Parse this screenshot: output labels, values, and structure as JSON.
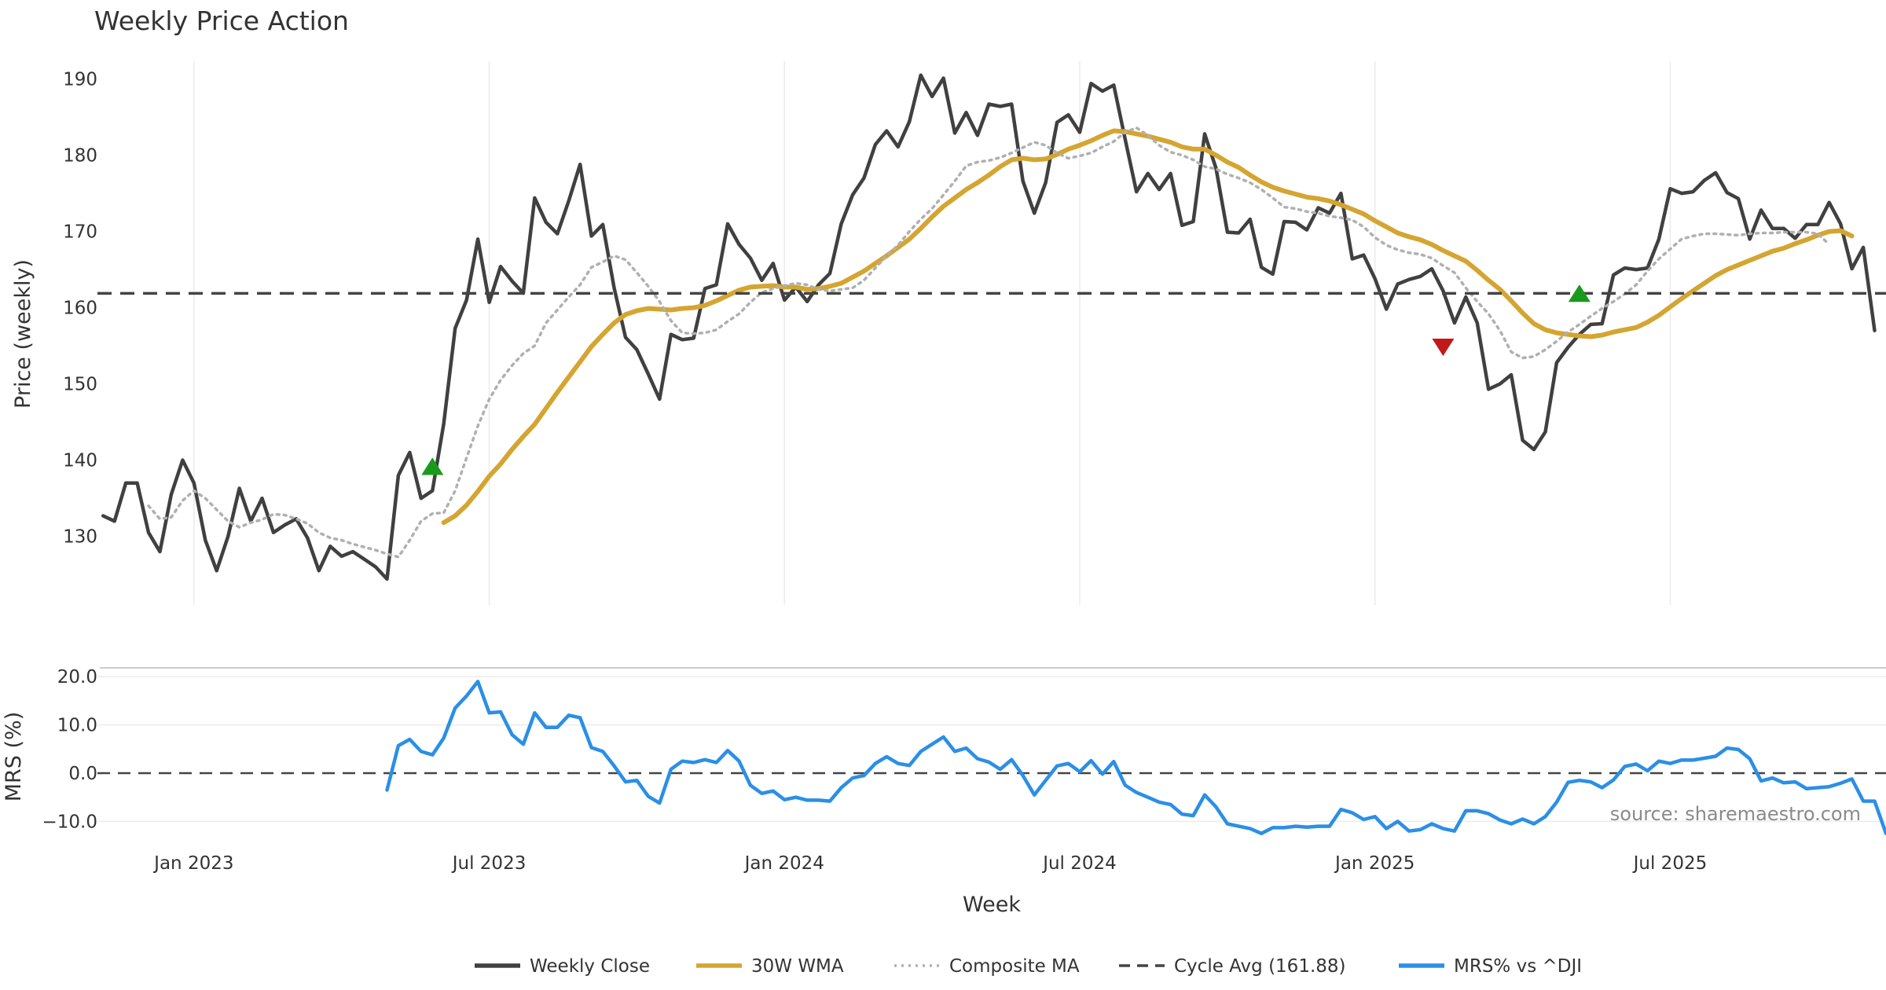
{
  "chart_data": {
    "type": "line",
    "title": "Weekly Price Action",
    "xlabel": "Week",
    "x_ticks": [
      {
        "label": "Jan 2023",
        "week": 0
      },
      {
        "label": "Jul 2023",
        "week": 26
      },
      {
        "label": "Jan 2024",
        "week": 52
      },
      {
        "label": "Jul 2024",
        "week": 78
      },
      {
        "label": "Jan 2025",
        "week": 104
      },
      {
        "label": "Jul 2025",
        "week": 130
      }
    ],
    "x_range": [
      -8.5,
      149
    ],
    "price_panel": {
      "ylabel": "Price (weekly)",
      "ylim": [
        121,
        195
      ],
      "yticks": [
        130,
        140,
        150,
        160,
        170,
        180,
        190
      ],
      "grid": "vertical",
      "start_week": -8,
      "series": [
        {
          "name": "Weekly Close",
          "color": "#404040",
          "values": [
            132.7,
            132,
            137,
            137,
            130.5,
            128,
            135.5,
            140,
            137,
            129.5,
            125.5,
            130,
            136.3,
            132,
            135,
            130.5,
            131.5,
            132.3,
            129.8,
            125.5,
            128.7,
            127.4,
            128,
            127,
            126,
            124.4,
            138,
            141,
            135,
            136,
            144.8,
            157.3,
            161,
            169,
            160.7,
            165.4,
            163.5,
            161.9,
            174.4,
            171.2,
            169.7,
            174,
            178.8,
            169.4,
            170.9,
            162.6,
            156.1,
            154.5,
            151.3,
            148,
            156.5,
            155.8,
            156,
            162.5,
            163,
            171,
            168.3,
            166.5,
            163.6,
            165.8,
            161,
            162.7,
            160.8,
            163,
            164.5,
            171,
            174.8,
            177,
            181.4,
            183.2,
            181.1,
            184.4,
            190.5,
            187.7,
            190.1,
            182.9,
            185.6,
            182.6,
            186.7,
            186.4,
            186.7,
            176.6,
            172.4,
            176.4,
            184.3,
            185.3,
            183,
            189.4,
            188.4,
            189.2,
            182.1,
            175.2,
            177.6,
            175.5,
            177.6,
            170.8,
            171.3,
            182.8,
            178.3,
            169.9,
            169.8,
            171.6,
            165.3,
            164.4,
            171.3,
            171.2,
            170.2,
            173.1,
            172.4,
            175,
            166.4,
            166.9,
            163.8,
            159.8,
            163.1,
            163.7,
            164.1,
            165.1,
            162.2,
            158,
            161.4,
            158,
            149.3,
            150,
            151.2,
            142.6,
            141.4,
            143.7,
            152.8,
            154.8,
            156.5,
            157.8,
            157.9,
            164.3,
            165.2,
            165,
            165.2,
            169,
            175.6,
            175,
            175.2,
            176.7,
            177.7,
            175.1,
            174.3,
            169,
            172.8,
            170.4,
            170.4,
            169.1,
            170.9,
            170.9,
            173.8,
            171,
            165.1,
            167.9,
            157
          ]
        },
        {
          "name": "30W WMA",
          "color": "#d4a531",
          "start_week": 22,
          "values": [
            131.8,
            132.7,
            134.1,
            135.9,
            137.9,
            139.5,
            141.4,
            143.1,
            144.7,
            146.8,
            148.9,
            150.9,
            152.9,
            154.9,
            156.5,
            158,
            159.1,
            159.6,
            159.9,
            159.8,
            159.7,
            159.9,
            160,
            160.3,
            160.9,
            161.6,
            162.3,
            162.7,
            162.8,
            162.9,
            162.7,
            162.7,
            162.4,
            162.5,
            162.8,
            163.2,
            164,
            164.8,
            165.8,
            166.8,
            167.9,
            169,
            170.4,
            171.9,
            173.3,
            174.4,
            175.5,
            176.4,
            177.4,
            178.5,
            179.4,
            179.6,
            179.4,
            179.5,
            180.1,
            180.8,
            181.3,
            181.9,
            182.6,
            183.2,
            183.1,
            182.8,
            182.5,
            182.1,
            181.7,
            181.1,
            180.8,
            180.8,
            180,
            179.1,
            178.4,
            177.4,
            176.5,
            175.8,
            175.3,
            174.9,
            174.5,
            174.3,
            174,
            173.5,
            172.9,
            172.3,
            171.4,
            170.6,
            169.8,
            169.3,
            168.9,
            168.3,
            167.5,
            166.8,
            166.1,
            164.9,
            163.6,
            162.4,
            160.9,
            159.3,
            157.9,
            157.1,
            156.7,
            156.5,
            156.3,
            156.2,
            156.4,
            156.8,
            157.1,
            157.4,
            158.1,
            159,
            160.1,
            161.2,
            162.2,
            163.2,
            164.2,
            165,
            165.6,
            166.2,
            166.8,
            167.4,
            167.8,
            168.4,
            168.9,
            169.5,
            170,
            170.1,
            169.4
          ]
        },
        {
          "name": "Composite MA",
          "color": "#b0b0b0",
          "start_week": -4,
          "values": [
            134,
            132.3,
            132.5,
            134.7,
            136,
            135,
            133.5,
            132,
            131.2,
            131.8,
            132.2,
            132.9,
            132.8,
            132.3,
            131.7,
            130.5,
            129.8,
            129.5,
            129,
            128.6,
            128.2,
            127.7,
            127.3,
            129.5,
            132,
            133,
            133.1,
            136,
            140.3,
            144.5,
            148,
            150.5,
            152.4,
            154,
            155,
            158,
            159.7,
            161.4,
            163,
            165.3,
            166,
            166.8,
            166.3,
            164.6,
            162.8,
            160.8,
            158.3,
            156.7,
            156.6,
            156.7,
            157.1,
            158.2,
            159.2,
            160.7,
            162,
            162.5,
            162.9,
            163.2,
            163,
            162.4,
            162.2,
            162.4,
            162.6,
            163.6,
            165.2,
            166.8,
            168.2,
            170,
            171.6,
            173,
            174.8,
            176.6,
            178.6,
            179.1,
            179.3,
            179.7,
            180.3,
            181,
            181.7,
            181.3,
            180.3,
            179.6,
            179.9,
            180.3,
            181.1,
            181.8,
            183,
            183.6,
            182.6,
            181.3,
            180.4,
            180,
            179.4,
            178.5,
            178.2,
            177.5,
            177,
            176.4,
            175.5,
            174.4,
            173.2,
            173,
            172.6,
            172.4,
            172,
            171.8,
            171.5,
            170.6,
            169.2,
            168.2,
            167.6,
            167.2,
            167,
            166.5,
            165.5,
            164.6,
            162.6,
            160.8,
            159.2,
            157,
            154.2,
            153.4,
            153.6,
            154.5,
            155.6,
            156.8,
            157.8,
            158.9,
            159.9,
            160.8,
            161.8,
            163,
            164.8,
            166.4,
            167.7,
            169,
            169.4,
            169.7,
            169.7,
            169.6,
            169.5,
            169.7,
            169.8,
            169.8,
            169.9,
            169.9,
            169.9,
            169.7,
            168.3
          ]
        },
        {
          "name": "Cycle Avg (161.88)",
          "color": "#444444",
          "value": 161.88
        }
      ],
      "markers": [
        {
          "type": "buy",
          "week": 21,
          "value": 139,
          "color": "#1a9a1a"
        },
        {
          "type": "sell",
          "week": 110,
          "value": 155,
          "color": "#c21a1a"
        },
        {
          "type": "buy",
          "week": 122,
          "value": 161.7,
          "color": "#1a9a1a"
        }
      ]
    },
    "mrs_panel": {
      "ylabel": "MRS (%)",
      "ylim": [
        -14,
        21.5
      ],
      "yticks": [
        -10.0,
        0.0,
        10.0,
        20.0
      ],
      "tick_labels": [
        "−10.0",
        "0.0",
        "10.0",
        "20.0"
      ],
      "grid": "horizontal",
      "zero_line": 0,
      "series": [
        {
          "name": "MRS% vs ^DJI",
          "color": "#2b8fe5",
          "start_week": 17,
          "values": [
            -3.5,
            5.7,
            7,
            4.5,
            3.8,
            7.3,
            13.5,
            16,
            19,
            12.5,
            12.7,
            8,
            6,
            12.5,
            9.5,
            9.5,
            12,
            11.5,
            5.3,
            4.5,
            1.5,
            -1.8,
            -1.5,
            -4.8,
            -6.2,
            0.8,
            2.5,
            2.2,
            2.8,
            2.2,
            4.7,
            2.5,
            -2.5,
            -4.2,
            -3.7,
            -5.5,
            -5,
            -5.6,
            -5.6,
            -5.8,
            -3,
            -1,
            -0.5,
            2,
            3.4,
            2,
            1.6,
            4.5,
            6,
            7.5,
            4.5,
            5.2,
            3,
            2.3,
            0.8,
            2.8,
            -0.5,
            -4.5,
            -1.5,
            1.5,
            2,
            0.3,
            2.6,
            -0.2,
            2.4,
            -2.5,
            -4,
            -5,
            -6,
            -6.5,
            -8.5,
            -8.8,
            -4.5,
            -7,
            -10.5,
            -11,
            -11.5,
            -12.5,
            -11.3,
            -11.3,
            -11,
            -11.2,
            -11,
            -11,
            -7.5,
            -8.2,
            -9.6,
            -9,
            -11.5,
            -10,
            -12,
            -11.7,
            -10.5,
            -11.5,
            -12,
            -7.8,
            -7.8,
            -8.4,
            -9.7,
            -10.5,
            -9.5,
            -10.5,
            -9,
            -6,
            -1.9,
            -1.5,
            -1.8,
            -3,
            -1.4,
            1.4,
            1.9,
            0.5,
            2.5,
            2,
            2.7,
            2.7,
            3.1,
            3.5,
            5.2,
            4.9,
            3,
            -1.6,
            -1,
            -2,
            -1.8,
            -3.2,
            -3,
            -2.8,
            -2.1,
            -1.2,
            -5.8,
            -5.8,
            -12.5
          ]
        }
      ]
    },
    "source_note": "source: sharemaestro.com",
    "legend": [
      {
        "label": "Weekly Close",
        "style": "solid",
        "color": "#404040"
      },
      {
        "label": "30W WMA",
        "style": "solid",
        "color": "#d4a531"
      },
      {
        "label": "Composite MA",
        "style": "dotted",
        "color": "#b0b0b0"
      },
      {
        "label": "Cycle Avg (161.88)",
        "style": "dashed",
        "color": "#444444"
      },
      {
        "label": "MRS% vs ^DJI",
        "style": "solid",
        "color": "#2b8fe5"
      }
    ]
  }
}
